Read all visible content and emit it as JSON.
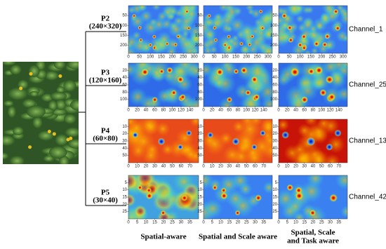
{
  "rows": [
    {
      "level": "P2",
      "size": "(240×320)",
      "channel": "Channel_1",
      "xlim": [
        0,
        320
      ],
      "ylim": [
        0,
        240
      ],
      "xticks": [
        0,
        50,
        100,
        150,
        200,
        250,
        300
      ],
      "yticks": [
        50,
        100,
        150,
        200
      ]
    },
    {
      "level": "P3",
      "size": "(120×160)",
      "channel": "Channel_25",
      "xlim": [
        0,
        160
      ],
      "ylim": [
        0,
        120
      ],
      "xticks": [
        0,
        20,
        40,
        60,
        80,
        100,
        120,
        140
      ],
      "yticks": [
        20,
        40,
        60,
        80,
        100
      ]
    },
    {
      "level": "P4",
      "size": "(60×80)",
      "channel": "Channel_13",
      "xlim": [
        0,
        80
      ],
      "ylim": [
        0,
        60
      ],
      "xticks": [
        0,
        10,
        20,
        30,
        40,
        50,
        60,
        70
      ],
      "yticks": [
        10,
        20,
        30,
        40,
        50
      ]
    },
    {
      "level": "P5",
      "size": "(30×40)",
      "channel": "Channel_42",
      "xlim": [
        0,
        40
      ],
      "ylim": [
        0,
        30
      ],
      "xticks": [
        0,
        5,
        10,
        15,
        20,
        25,
        30,
        35
      ],
      "yticks": [
        5,
        10,
        15,
        20,
        25
      ]
    }
  ],
  "columns": [
    "Spatial-aware",
    "Spatial and Scale aware",
    [
      "Spatial, Scale",
      "and Task aware"
    ]
  ]
}
